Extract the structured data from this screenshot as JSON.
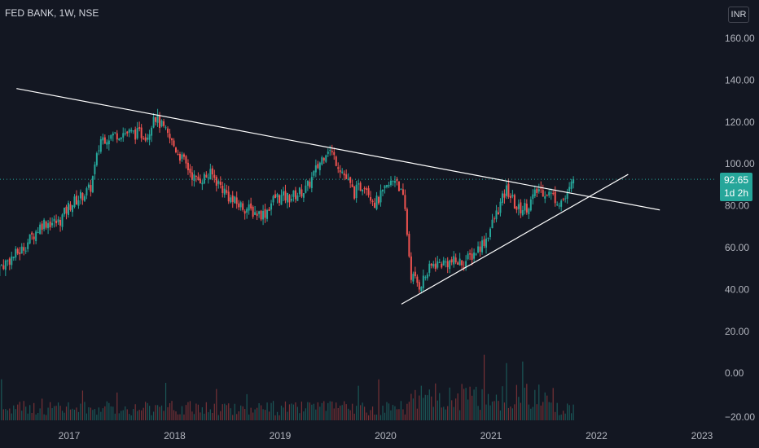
{
  "header": {
    "symbol_title": "FED BANK, 1W, NSE"
  },
  "currency_button": "INR",
  "price_badge": {
    "price": "92.65",
    "countdown": "1d 2h"
  },
  "colors": {
    "background": "#131722",
    "up": "#26a69a",
    "down": "#ef5350",
    "trendline": "#ffffff",
    "current_price_line": "#26a69a",
    "axis_text": "#b2b5be"
  },
  "chart_data": {
    "type": "candlestick",
    "title": "FED BANK, 1W, NSE",
    "x_ticks": [
      "2017",
      "2018",
      "2019",
      "2020",
      "2021",
      "2022",
      "2023"
    ],
    "y_ticks": [
      160,
      140,
      120,
      100,
      80,
      60,
      40,
      20,
      0,
      -20
    ],
    "y_tick_labels": [
      "160.00",
      "140.00",
      "120.00",
      "100.00",
      "80.00",
      "60.00",
      "40.00",
      "20.00",
      "0.00",
      "−20.00"
    ],
    "ylim": [
      -22,
      172
    ],
    "last_price": 92.65,
    "price_path": [
      {
        "t": 2016.3,
        "p": 49
      },
      {
        "t": 2016.55,
        "p": 59
      },
      {
        "t": 2016.75,
        "p": 72
      },
      {
        "t": 2016.9,
        "p": 72
      },
      {
        "t": 2017.0,
        "p": 80
      },
      {
        "t": 2017.2,
        "p": 88
      },
      {
        "t": 2017.3,
        "p": 112
      },
      {
        "t": 2017.5,
        "p": 115
      },
      {
        "t": 2017.75,
        "p": 114
      },
      {
        "t": 2017.8,
        "p": 124
      },
      {
        "t": 2018.0,
        "p": 108
      },
      {
        "t": 2018.2,
        "p": 92
      },
      {
        "t": 2018.35,
        "p": 95
      },
      {
        "t": 2018.55,
        "p": 82
      },
      {
        "t": 2018.75,
        "p": 77
      },
      {
        "t": 2018.85,
        "p": 76
      },
      {
        "t": 2018.95,
        "p": 84
      },
      {
        "t": 2019.1,
        "p": 84
      },
      {
        "t": 2019.25,
        "p": 88
      },
      {
        "t": 2019.35,
        "p": 98
      },
      {
        "t": 2019.45,
        "p": 108
      },
      {
        "t": 2019.55,
        "p": 100
      },
      {
        "t": 2019.7,
        "p": 86
      },
      {
        "t": 2019.8,
        "p": 91
      },
      {
        "t": 2019.9,
        "p": 81
      },
      {
        "t": 2020.1,
        "p": 94
      },
      {
        "t": 2020.18,
        "p": 80
      },
      {
        "t": 2020.24,
        "p": 47
      },
      {
        "t": 2020.32,
        "p": 42
      },
      {
        "t": 2020.45,
        "p": 52
      },
      {
        "t": 2020.6,
        "p": 53
      },
      {
        "t": 2020.75,
        "p": 53
      },
      {
        "t": 2020.85,
        "p": 58
      },
      {
        "t": 2020.95,
        "p": 64
      },
      {
        "t": 2021.05,
        "p": 76
      },
      {
        "t": 2021.15,
        "p": 88
      },
      {
        "t": 2021.25,
        "p": 78
      },
      {
        "t": 2021.35,
        "p": 80
      },
      {
        "t": 2021.45,
        "p": 88
      },
      {
        "t": 2021.55,
        "p": 86
      },
      {
        "t": 2021.65,
        "p": 82
      },
      {
        "t": 2021.72,
        "p": 84
      },
      {
        "t": 2021.78,
        "p": 92.65
      }
    ],
    "volume_overlay": "histogram at bottom of pane, values approximately -20 to 30 on shared axis",
    "trendlines": [
      {
        "name": "resistance",
        "from": {
          "t": 2016.5,
          "p": 136
        },
        "to": {
          "t": 2022.6,
          "p": 78
        }
      },
      {
        "name": "support",
        "from": {
          "t": 2020.15,
          "p": 33
        },
        "to": {
          "t": 2022.3,
          "p": 95
        }
      }
    ],
    "grid": false,
    "legend": "none"
  }
}
